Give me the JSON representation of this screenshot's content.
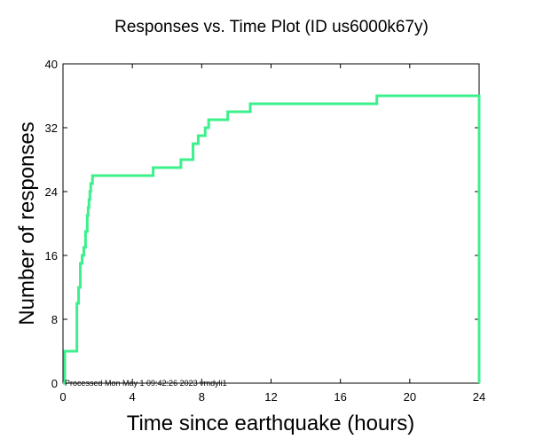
{
  "chart_data": {
    "type": "line",
    "title": "Responses vs. Time Plot (ID us6000k67y)",
    "xlabel": "Time since earthquake (hours)",
    "ylabel": "Number of responses",
    "xlim": [
      0,
      24
    ],
    "ylim": [
      0,
      40
    ],
    "x_ticks": [
      "0",
      "4",
      "8",
      "12",
      "16",
      "20",
      "24"
    ],
    "y_ticks": [
      "0",
      "8",
      "16",
      "24",
      "32",
      "40"
    ],
    "grid": false,
    "step": true,
    "line_color": "#3cf08c",
    "series": [
      {
        "x": [
          0.0,
          0.1,
          0.7,
          0.8,
          0.9,
          1.0,
          1.1,
          1.2,
          1.3,
          1.4,
          1.45,
          1.5,
          1.55,
          1.6,
          1.7,
          2.0,
          5.2,
          6.8,
          7.5,
          7.8,
          8.2,
          8.4,
          9.5,
          10.8,
          18.1,
          24.0
        ],
        "y": [
          0,
          4,
          4,
          10,
          12,
          15,
          16,
          17,
          19,
          21,
          22,
          23,
          24,
          25,
          26,
          26,
          27,
          28,
          30,
          31,
          32,
          33,
          34,
          35,
          36,
          0
        ]
      }
    ],
    "annotation": "Processed Mon May  1 09:42:26 2023 vmdyli1"
  }
}
